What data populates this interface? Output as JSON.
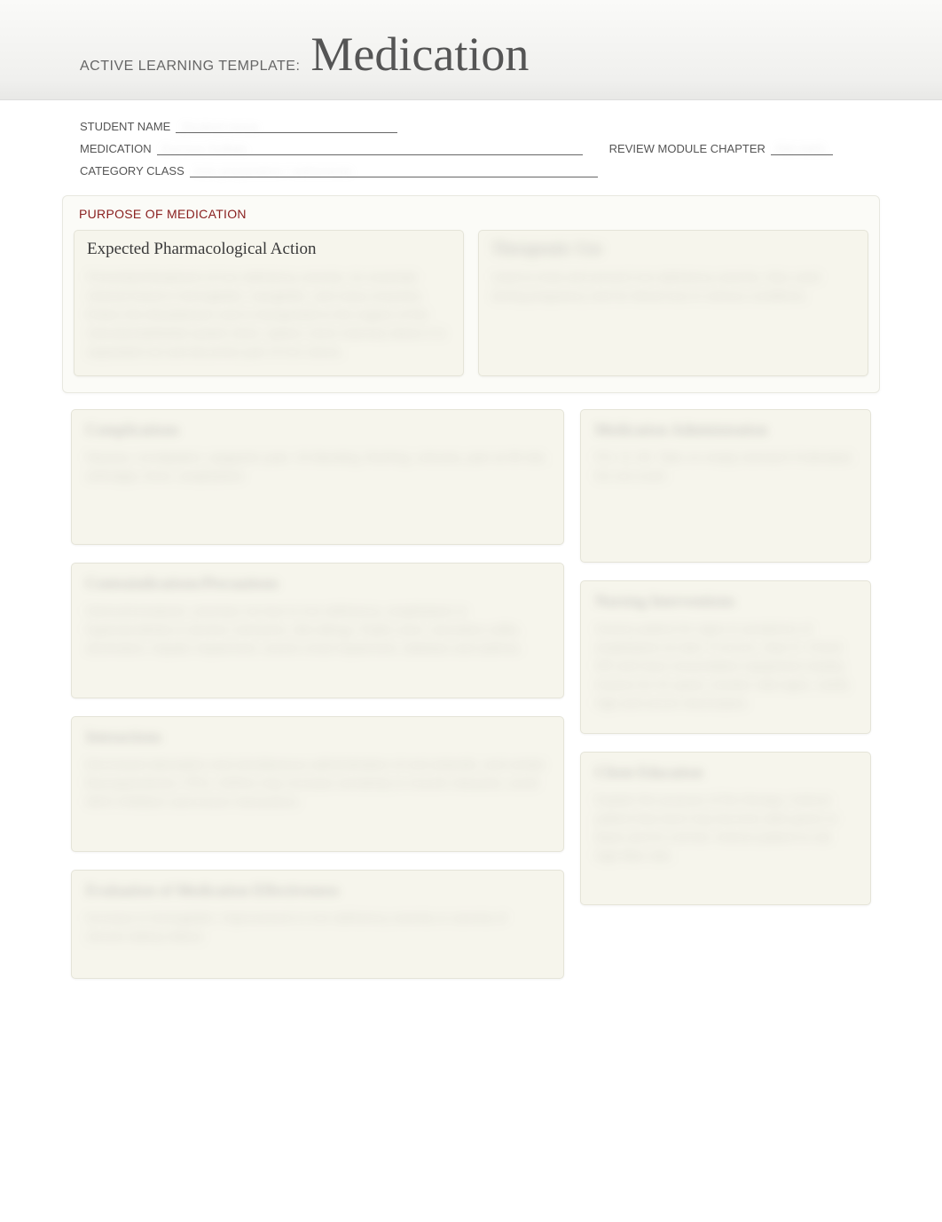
{
  "header": {
    "template_label": "ACTIVE LEARNING TEMPLATE:",
    "template_title": "Medication"
  },
  "info": {
    "student_name_label": "STUDENT NAME",
    "student_name_value": "Student name",
    "medication_label": "MEDICATION",
    "medication_value": "Ferrous Sulfate",
    "review_label": "REVIEW MODULE CHAPTER",
    "review_value": "RM AMS",
    "category_label": "CATEGORY CLASS",
    "category_value": "Iron preparation / antianemic"
  },
  "purpose": {
    "section_title": "PURPOSE OF MEDICATION",
    "pharm_title": "Expected Pharmacological Action",
    "pharm_body": "Prevention/treatment of iron deficiency anemia. An essential mineral found in hemoglobin, myoglobin, and many enzymes. Enters the bloodstream and is transported to the organs of the reticuloendothelial system (liver, spleen, bone marrow) where it is separated out and becomes part of iron stores.",
    "therapeutic_title": "Therapeutic Use",
    "therapeutic_body": "Used to treat and prevent iron-deficiency anemia. Also used during pregnancy and for blood loss in various conditions."
  },
  "complications": {
    "title": "Complications",
    "body": "Nausea, constipation, epigastric pain, GI bleeding, flushing, urticaria, pain at IM site, arthralgia, fever, anaphylaxis"
  },
  "contra": {
    "title": "Contraindications/Precautions",
    "body": "Hemochromatosis, anemias not due to iron deficiency, anaphylaxis or hypersensitivity to alcohol, tartrazine, diet allergy. Peptic ulcer, ulcerative colitis, alcoholism, hepatic impairment, severe renal impairment, diabetes and asthma."
  },
  "interactions": {
    "title": "Interactions",
    "body": "Decreased absorption and simultaneous administration of oral antacids, and certain fluoroquinolones. PPIs, H2RAs may increase sensitivity to muscle relaxants; avoid MAO inhibitors and known interactions."
  },
  "evaluation": {
    "title": "Evaluation of Medication Effectiveness",
    "body": "Increase in hemoglobin. Improvement in iron deficiency anemia or anemia of chronic kidney failure."
  },
  "admin": {
    "title": "Medication Administration",
    "body": "PO, IV, IM. Take on empty stomach if tolerated. Do not crush."
  },
  "nursing": {
    "title": "Nursing Interventions",
    "body": "Assess patient for signs & symptoms of anaphylaxis at start. If occurs, stop IV. Check HR and have resuscitation equipment nearby. Assess for GI upset, monitor vital signs, clarify Hgb and serum electrolytes."
  },
  "client_ed": {
    "title": "Client Education",
    "body": "Explain the purpose of the therapy. Instruct patient that stool may become dark green or black and it's normal. Instruct patient to eat high-fiber diet."
  },
  "colors": {
    "title_red": "#8a2020",
    "card_bg": "#f6f5ec",
    "page_bg": "#ffffff"
  }
}
